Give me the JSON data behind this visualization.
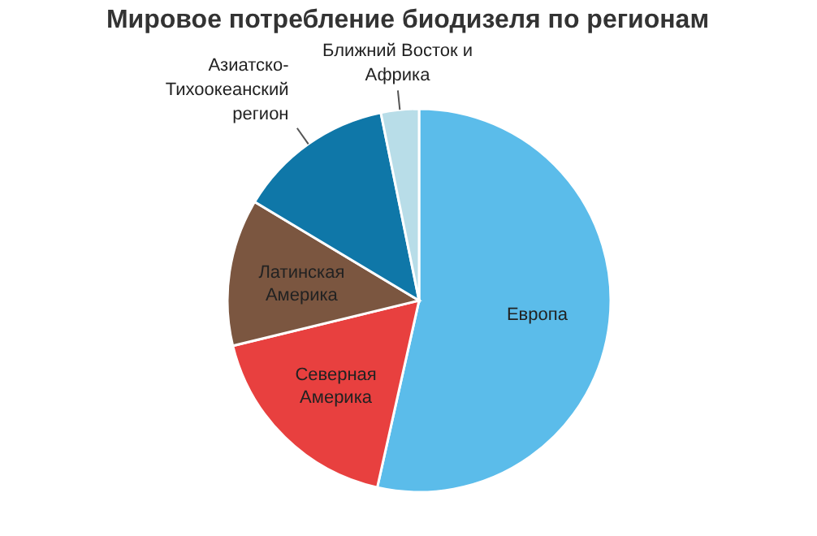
{
  "chart_data": {
    "type": "pie",
    "title": "Мировое потребление биодизеля по регионам",
    "categories": [
      "Европа",
      "Северная Америка",
      "Латинская Америка",
      "Азиатско-Тихоокеанский регион",
      "Ближний Восток и Африка"
    ],
    "values": [
      53.5,
      17.7,
      12.4,
      13.2,
      3.2
    ],
    "colors": [
      "#5bbcea",
      "#e8403f",
      "#7b5640",
      "#0f77a8",
      "#b8dde8"
    ]
  }
}
